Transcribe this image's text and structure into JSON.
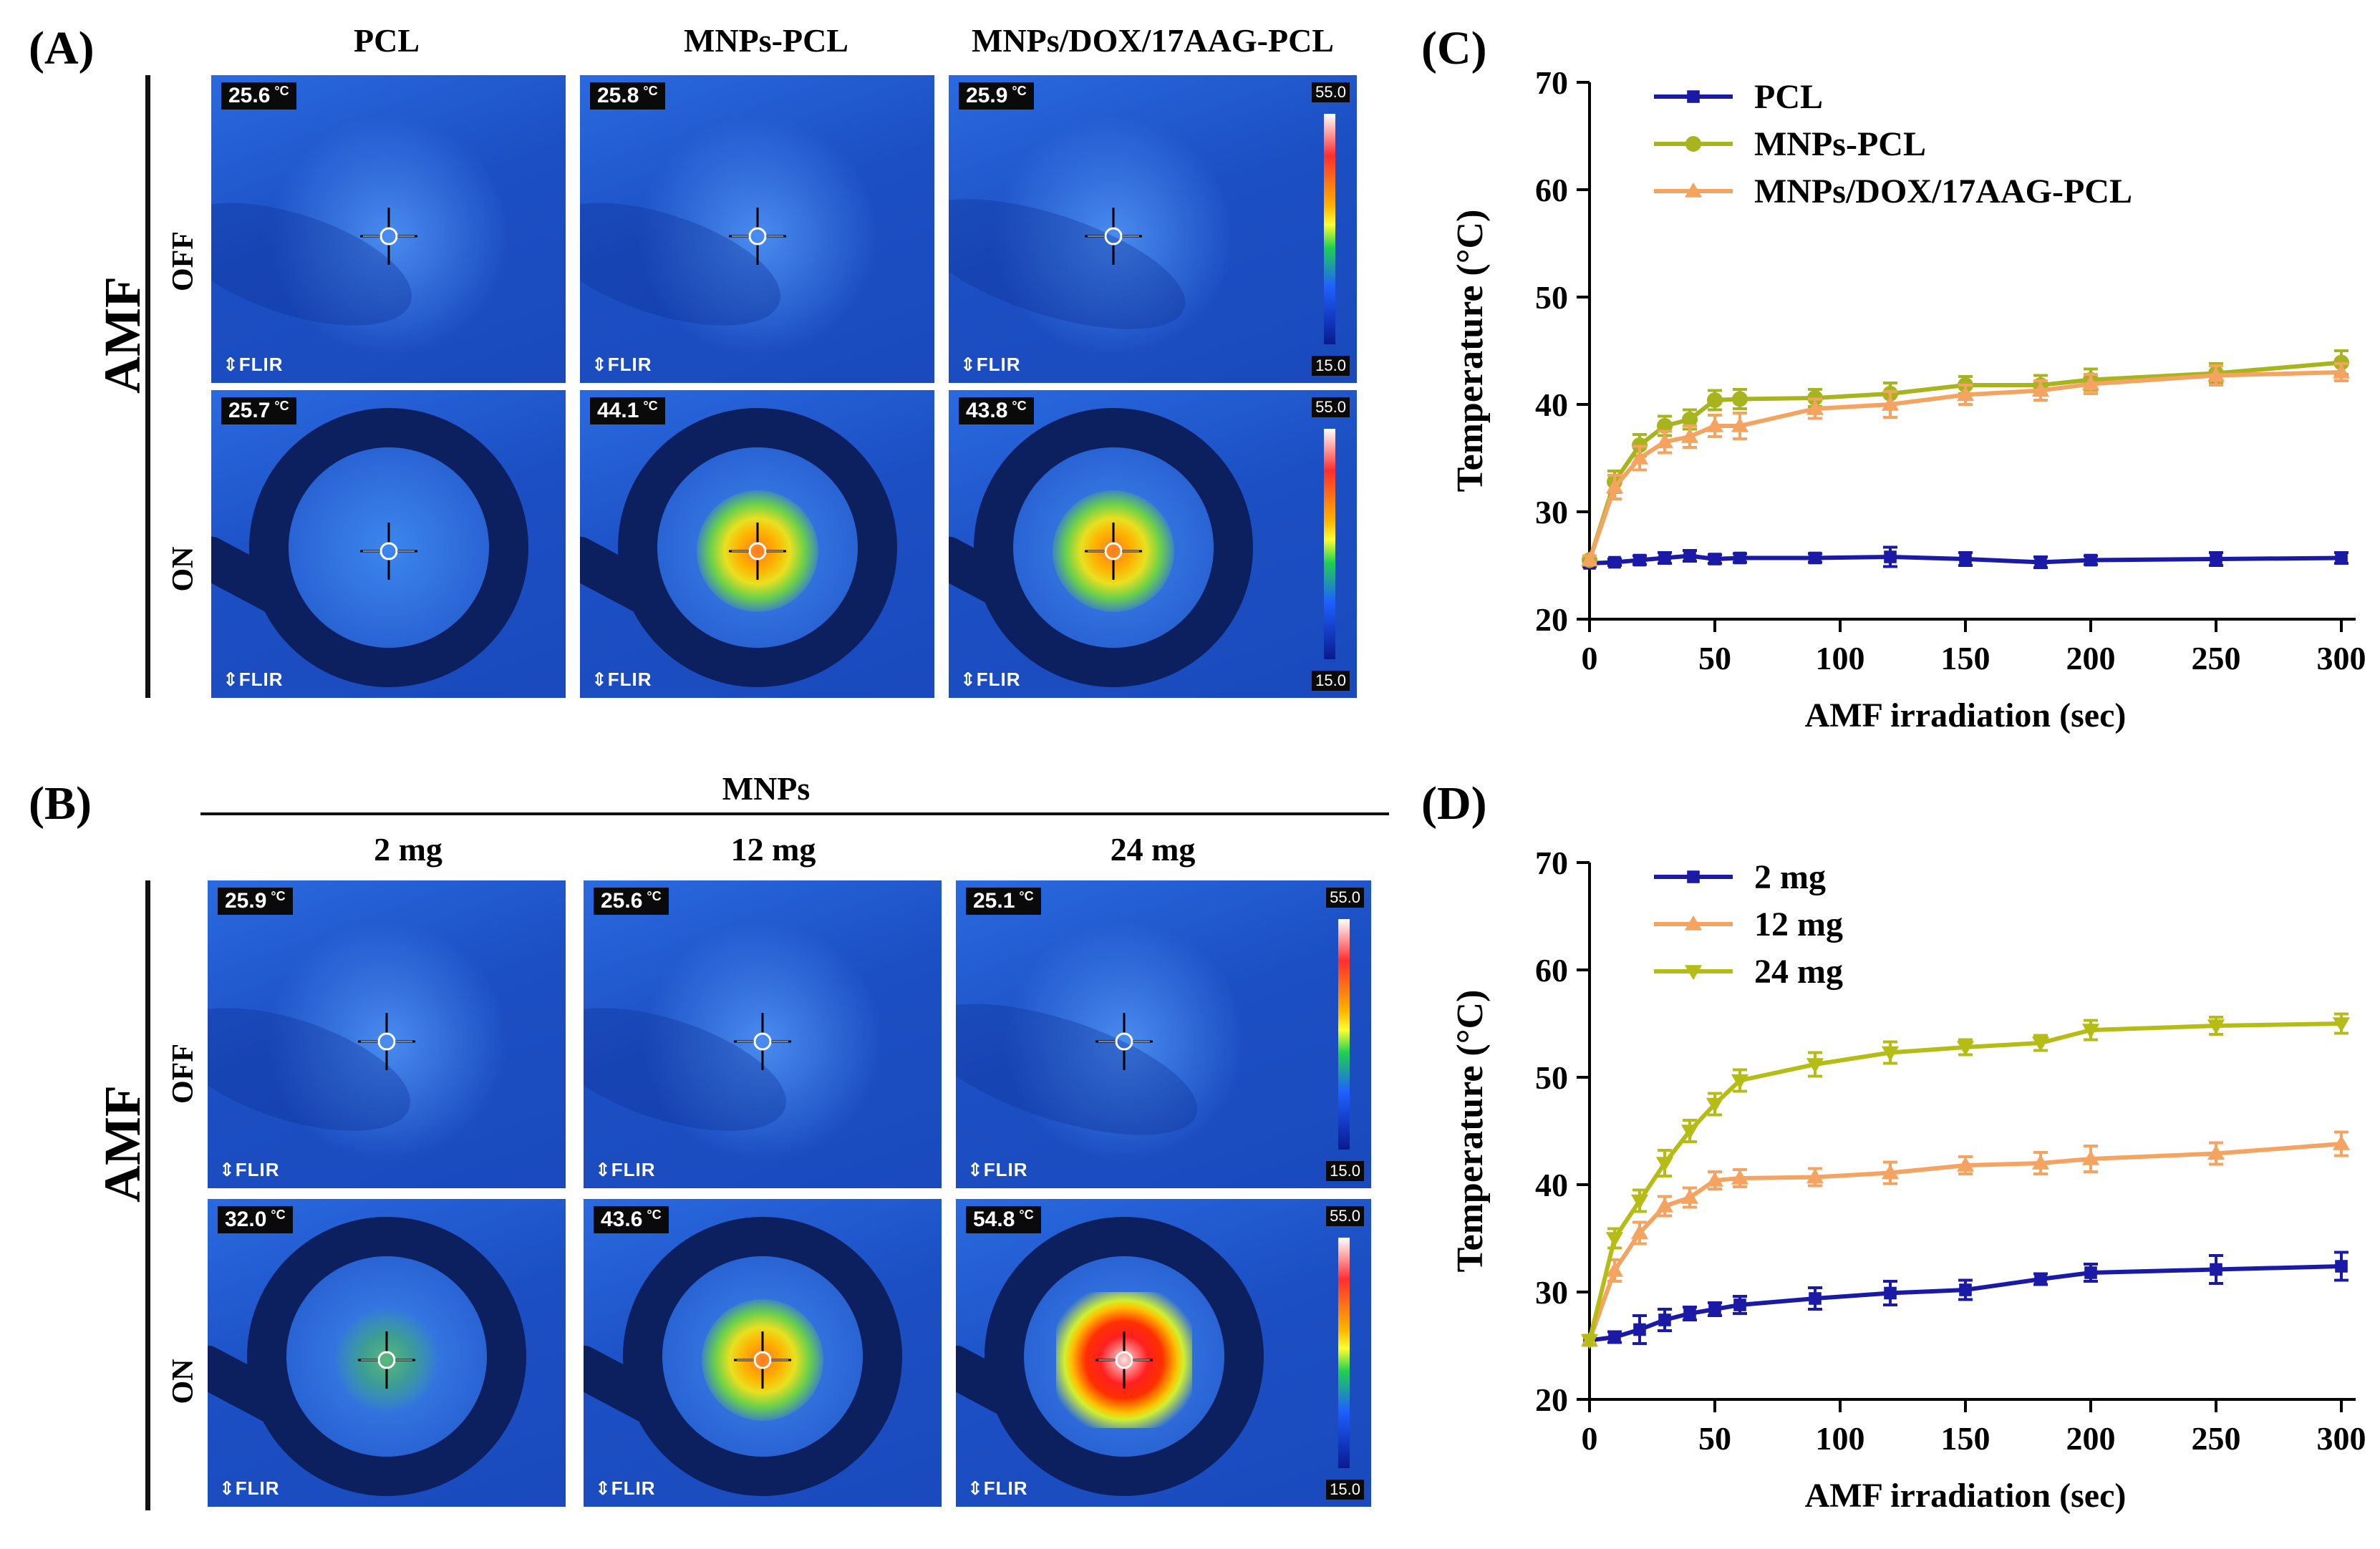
{
  "panels": {
    "A": "(A)",
    "B": "(B)",
    "C": "(C)",
    "D": "(D)"
  },
  "sideLabels": {
    "amf": "AMF",
    "off": "OFF",
    "on": "ON"
  },
  "panelA": {
    "columns": [
      "PCL",
      "MNPs-PCL",
      "MNPs/DOX/17AAG-PCL"
    ],
    "off_temps": [
      "25.6",
      "25.8",
      "25.9"
    ],
    "on_temps": [
      "25.7",
      "44.1",
      "43.8"
    ]
  },
  "panelB": {
    "header": "MNPs",
    "columns": [
      "2 mg",
      "12 mg",
      "24 mg"
    ],
    "off_temps": [
      "25.9",
      "25.6",
      "25.1"
    ],
    "on_temps": [
      "32.0",
      "43.6",
      "54.8"
    ]
  },
  "thermal": {
    "unit": "°C",
    "scale_max": "55.0",
    "scale_min": "15.0",
    "brand": "⇕FLIR"
  },
  "chart_data": [
    {
      "type": "line",
      "id": "C",
      "xlabel": "AMF irradiation (sec)",
      "ylabel": "Temperature (°C)",
      "xlim": [
        0,
        300
      ],
      "ylim": [
        20,
        70
      ],
      "xticks": [
        0,
        50,
        100,
        150,
        200,
        250,
        300
      ],
      "yticks": [
        20,
        30,
        40,
        50,
        60,
        70
      ],
      "x": [
        0,
        10,
        20,
        30,
        40,
        50,
        60,
        90,
        120,
        150,
        180,
        200,
        250,
        300
      ],
      "series": [
        {
          "name": "PCL",
          "color": "#1a1aa6",
          "marker": "square",
          "values": [
            25.2,
            25.3,
            25.5,
            25.7,
            25.9,
            25.6,
            25.7,
            25.7,
            25.8,
            25.6,
            25.3,
            25.5,
            25.6,
            25.7
          ],
          "errors": [
            0.3,
            0.3,
            0.4,
            0.5,
            0.5,
            0.4,
            0.4,
            0.4,
            0.9,
            0.6,
            0.5,
            0.4,
            0.6,
            0.5
          ]
        },
        {
          "name": "MNPs-PCL",
          "color": "#a8b41e",
          "marker": "circle",
          "values": [
            25.5,
            32.8,
            36.2,
            38.0,
            38.6,
            40.4,
            40.5,
            40.6,
            41.0,
            41.8,
            41.8,
            42.3,
            42.9,
            43.9
          ],
          "errors": [
            0.4,
            1.0,
            1.0,
            0.9,
            0.9,
            0.9,
            0.9,
            0.8,
            1.0,
            0.8,
            0.9,
            1.0,
            0.9,
            1.1
          ]
        },
        {
          "name": "MNPs/DOX/17AAG-PCL",
          "color": "#f4a460",
          "marker": "triangle",
          "values": [
            25.5,
            32.3,
            35.0,
            36.5,
            37.0,
            38.0,
            38.0,
            39.6,
            40.0,
            40.9,
            41.3,
            41.9,
            42.7,
            43.0
          ],
          "errors": [
            0.4,
            1.1,
            1.1,
            1.0,
            1.0,
            1.0,
            1.2,
            0.9,
            1.2,
            0.9,
            0.9,
            0.9,
            0.9,
            0.8
          ]
        }
      ],
      "legend": "top-left"
    },
    {
      "type": "line",
      "id": "D",
      "xlabel": "AMF irradiation (sec)",
      "ylabel": "Temperature (°C)",
      "xlim": [
        0,
        300
      ],
      "ylim": [
        20,
        70
      ],
      "xticks": [
        0,
        50,
        100,
        150,
        200,
        250,
        300
      ],
      "yticks": [
        20,
        30,
        40,
        50,
        60,
        70
      ],
      "x": [
        0,
        10,
        20,
        30,
        40,
        50,
        60,
        90,
        120,
        150,
        180,
        200,
        250,
        300
      ],
      "series": [
        {
          "name": "2 mg",
          "color": "#1a1aa6",
          "marker": "square",
          "values": [
            25.5,
            25.8,
            26.5,
            27.4,
            28.0,
            28.4,
            28.8,
            29.4,
            29.9,
            30.2,
            31.2,
            31.8,
            32.1,
            32.4
          ],
          "errors": [
            0.4,
            0.5,
            1.3,
            1.0,
            0.6,
            0.6,
            0.8,
            1.0,
            1.1,
            0.9,
            0.5,
            0.8,
            1.3,
            1.3
          ]
        },
        {
          "name": "12 mg",
          "color": "#f4a460",
          "marker": "triangle",
          "values": [
            25.5,
            32.0,
            35.5,
            38.0,
            38.8,
            40.4,
            40.6,
            40.7,
            41.1,
            41.8,
            42.0,
            42.4,
            42.9,
            43.8
          ],
          "errors": [
            0.4,
            1.0,
            1.0,
            0.9,
            0.9,
            0.8,
            0.8,
            0.8,
            1.0,
            0.8,
            1.0,
            1.2,
            1.0,
            1.1
          ]
        },
        {
          "name": "24 mg",
          "color": "#b5bc15",
          "marker": "triangle-down",
          "values": [
            25.5,
            35.0,
            38.5,
            42.0,
            45.0,
            47.5,
            49.7,
            51.2,
            52.3,
            52.8,
            53.2,
            54.4,
            54.8,
            55.0
          ],
          "errors": [
            0.4,
            0.9,
            1.0,
            1.2,
            1.0,
            1.0,
            1.0,
            1.1,
            1.0,
            0.7,
            0.7,
            0.9,
            0.8,
            0.9
          ]
        }
      ],
      "legend": "top-left"
    }
  ]
}
